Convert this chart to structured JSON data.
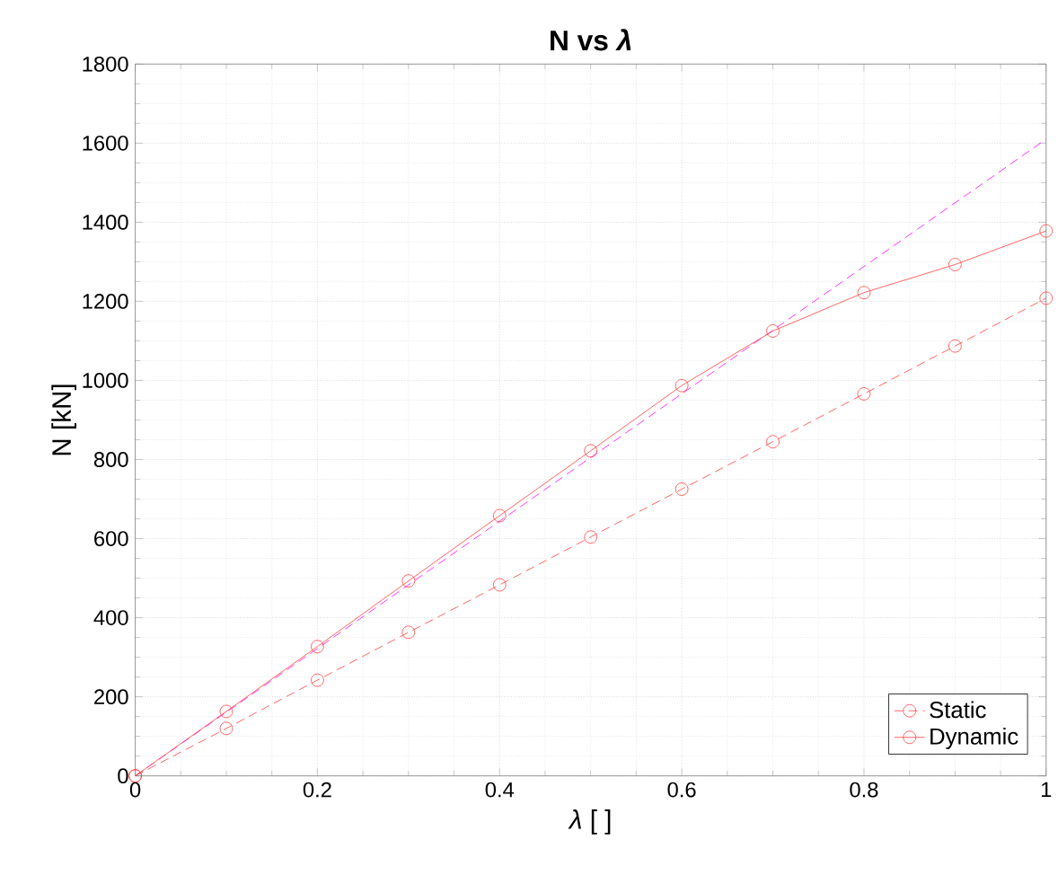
{
  "chart_data": {
    "type": "line",
    "title": "N vs *λ*",
    "xlabel": "*λ* [ ]",
    "ylabel": "N [kN]",
    "x": [
      0,
      0.1,
      0.2,
      0.3,
      0.4,
      0.5,
      0.6,
      0.7,
      0.8,
      0.9,
      1
    ],
    "series": [
      {
        "name": "Static",
        "color": "#ff3b3b",
        "line_style": "dashed",
        "marker": "circle",
        "values": [
          0,
          120,
          242,
          363,
          483,
          604,
          725,
          845,
          966,
          1087,
          1208
        ]
      },
      {
        "name": "Dynamic",
        "color": "#ff3b3b",
        "line_style": "solid",
        "marker": "circle",
        "values": [
          0,
          163,
          327,
          493,
          658,
          822,
          987,
          1125,
          1222,
          1293,
          1378
        ]
      },
      {
        "color": "#ff00ff",
        "line_style": "dashed",
        "marker": "none",
        "x": [
          0,
          1
        ],
        "values": [
          0,
          1610
        ]
      }
    ],
    "xlim": [
      0,
      1
    ],
    "ylim": [
      0,
      1800
    ],
    "xticks": [
      0,
      0.2,
      0.4,
      0.6,
      0.8,
      1
    ],
    "yticks": [
      0,
      200,
      400,
      600,
      800,
      1000,
      1200,
      1400,
      1600,
      1800
    ],
    "grid": true,
    "legend": "bottom right"
  }
}
